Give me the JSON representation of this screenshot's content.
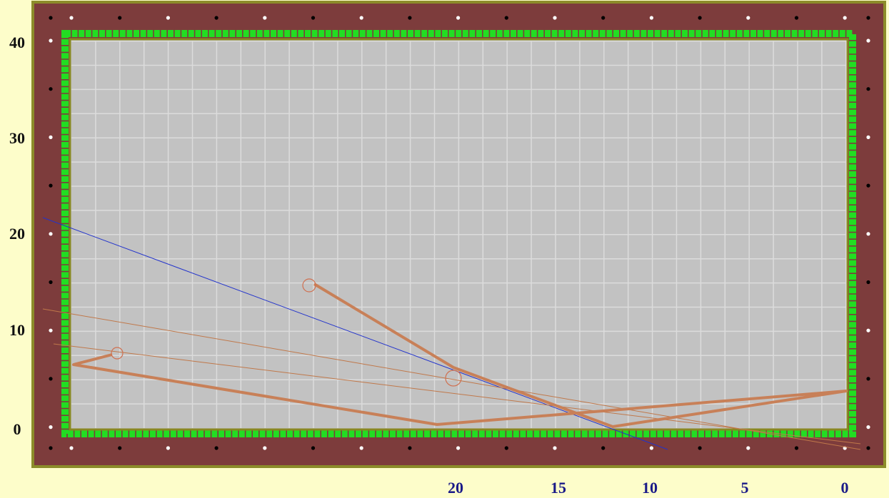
{
  "left_labels": [
    "40",
    "30",
    "20",
    "10",
    "0"
  ],
  "bottom_labels": [
    "20",
    "15",
    "10",
    "5",
    "0"
  ]
}
